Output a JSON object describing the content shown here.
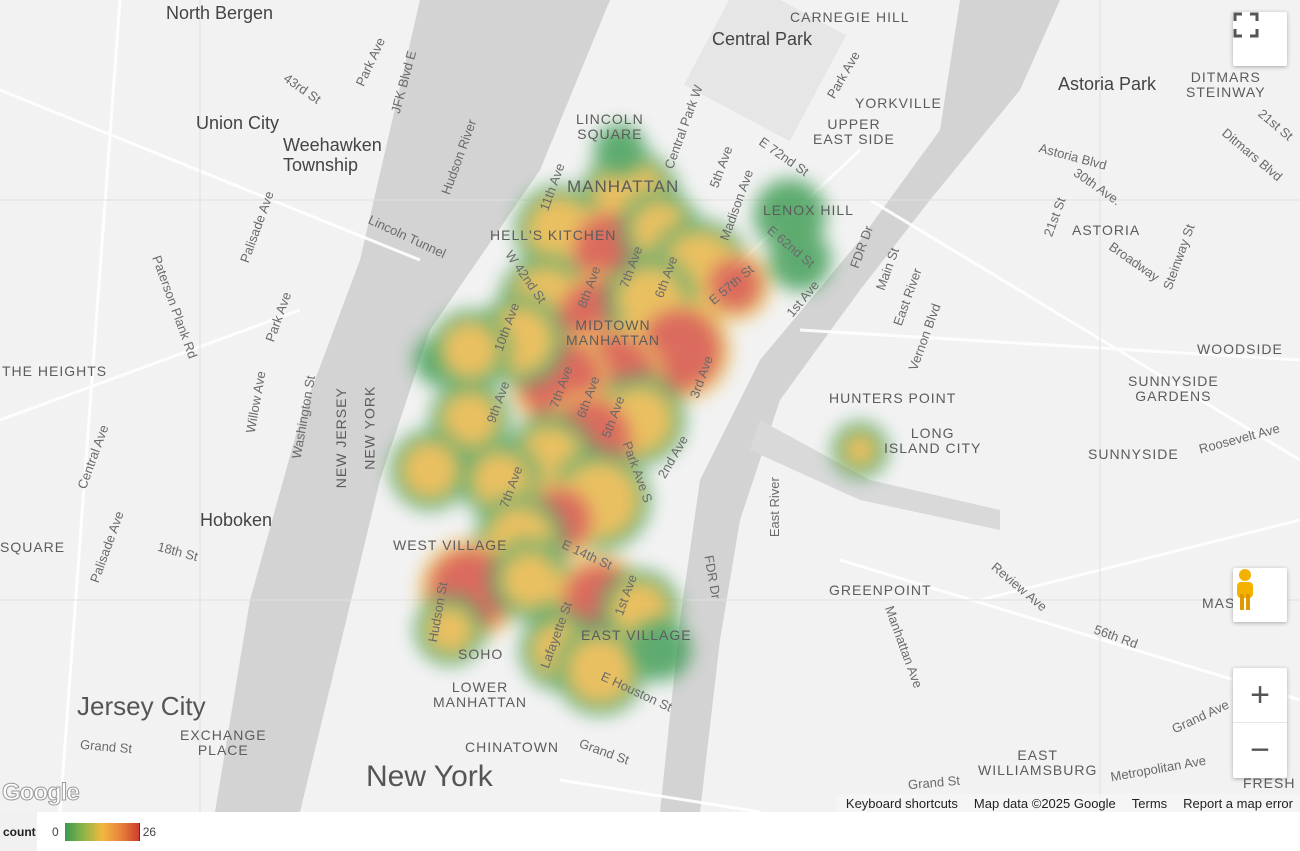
{
  "map": {
    "labels": [
      "North Bergen",
      "Union City",
      "Weehawken\nTownship",
      "Hoboken",
      "Jersey City",
      "New York",
      "CARNEGIE HILL",
      "Central Park",
      "YORKVILLE",
      "UPPER\nEAST SIDE",
      "LENOX HILL",
      "LINCOLN\nSQUARE",
      "MANHATTAN",
      "HELL'S KITCHEN",
      "MIDTOWN\nMANHATTAN",
      "WEST VILLAGE",
      "EAST VILLAGE",
      "SOHO",
      "LOWER\nMANHATTAN",
      "CHINATOWN",
      "EXCHANGE\nPLACE",
      "THE HEIGHTS",
      "SQUARE",
      "NEW JERSEY",
      "NEW YORK",
      "Astoria Park",
      "DITMARS\nSTEINWAY",
      "ASTORIA",
      "WOODSIDE",
      "SUNNYSIDE\nGARDENS",
      "SUNNYSIDE",
      "HUNTERS POINT",
      "LONG\nISLAND CITY",
      "GREENPOINT",
      "EAST\nWILLIAMSBURG",
      "MAS",
      "FRESH",
      "Park Ave",
      "43rd St",
      "JFK Blvd E",
      "Hudson River",
      "Lincoln Tunnel",
      "Palisade Ave",
      "Paterson Plank Rd",
      "Park Ave",
      "Willow Ave",
      "Washington St",
      "Central Ave",
      "Palisade Ave",
      "18th St",
      "Grand St",
      "11th Ave",
      "Central Park W",
      "5th Ave",
      "Madison Ave",
      "E 72nd St",
      "Park Ave",
      "FDR Dr",
      "Main St",
      "East River",
      "Vernon Blvd",
      "Astoria Blvd",
      "30th Ave.",
      "21st St",
      "Broadway",
      "Steinway St",
      "Ditmars Blvd",
      "21st St",
      "Roosevelt Ave",
      "Review Ave",
      "56th Rd",
      "Manhattan Ave",
      "Grand Ave",
      "Metropolitan Ave",
      "Grand St",
      "East River",
      "FDR Dr",
      "E Houston St",
      "Grand St",
      "Lafayette St",
      "Hudson St",
      "E 14th St",
      "1st Ave",
      "2nd Ave",
      "Park Ave S",
      "7th Ave",
      "5th Ave",
      "6th Ave",
      "7th Ave",
      "9th Ave",
      "10th Ave",
      "W 42nd St",
      "8th Ave",
      "7th Ave",
      "6th Ave",
      "3rd Ave",
      "E 57th St",
      "E 62nd St",
      "1st Ave"
    ],
    "heatmap": {
      "metric": "count",
      "min": 0,
      "max": 26,
      "colors": [
        "#3a9a50",
        "#f0b940",
        "#cc3d2e"
      ]
    }
  },
  "controls": {
    "fullscreen": "fullscreen-icon",
    "pegman": "street-view-icon",
    "zoom_in": "+",
    "zoom_out": "−"
  },
  "attribution": {
    "logo": "Google",
    "keyboard": "Keyboard shortcuts",
    "mapdata": "Map data ©2025 Google",
    "terms": "Terms",
    "report": "Report a map error"
  },
  "legend": {
    "title": "count",
    "min": "0",
    "max": "26"
  }
}
